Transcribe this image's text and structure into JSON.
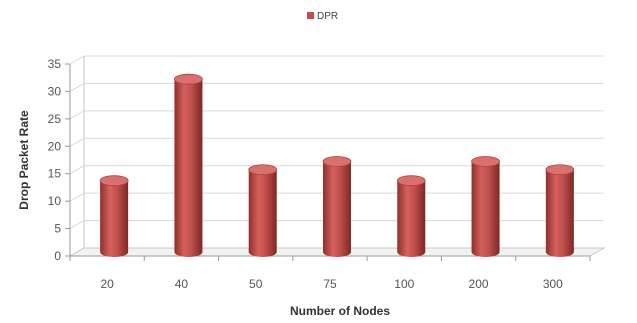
{
  "chart_data": {
    "type": "bar",
    "style": "3d-cylinder",
    "categories": [
      "20",
      "40",
      "50",
      "75",
      "100",
      "200",
      "300"
    ],
    "series": [
      {
        "name": "DPR",
        "values": [
          13,
          31.5,
          15,
          16.5,
          13,
          16.5,
          15
        ],
        "color": "#c0504d"
      }
    ],
    "xlabel": "Number of Nodes",
    "ylabel": "Drop Packet Rate",
    "ylim": [
      0,
      35
    ],
    "yticks": [
      0,
      5,
      10,
      15,
      20,
      25,
      30,
      35
    ],
    "grid": true,
    "legend_position": "top"
  },
  "colors": {
    "bar_body": "#c0504d",
    "bar_top": "#d9706d",
    "grid": "#d9d9d9"
  }
}
